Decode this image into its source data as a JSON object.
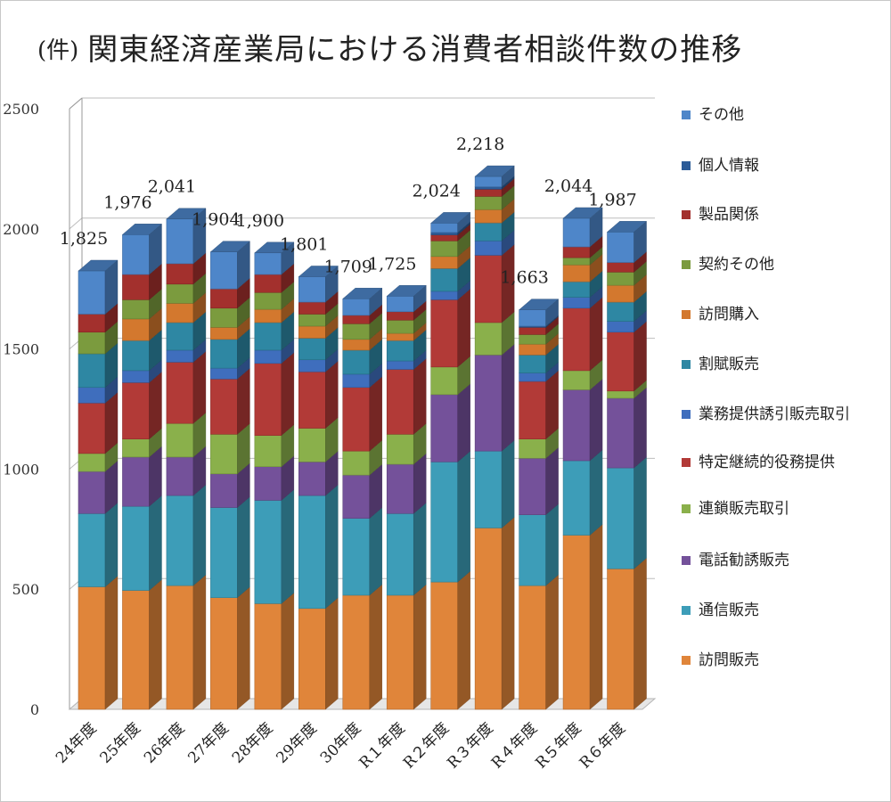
{
  "title": {
    "unit": "(件)",
    "text": "関東経済産業局における消費者相談件数の推移"
  },
  "chart_data": {
    "type": "bar",
    "stacked": true,
    "title": "関東経済産業局における消費者相談件数の推移",
    "ylabel": "(件)",
    "xlabel": "",
    "ylim": [
      0,
      2500
    ],
    "yticks": [
      "0",
      "500",
      "1000",
      "1500",
      "2000",
      "2500"
    ],
    "grid": true,
    "legend_position": "right",
    "categories": [
      "24年度",
      "25年度",
      "26年度",
      "27年度",
      "28年度",
      "29年度",
      "30年度",
      "R１年度",
      "R２年度",
      "R３年度",
      "R４年度",
      "R５年度",
      "R６年度"
    ],
    "totals": [
      1825,
      1976,
      2041,
      1904,
      1900,
      1801,
      1709,
      1725,
      2024,
      2218,
      1663,
      2044,
      1987
    ],
    "total_labels": [
      "1,825",
      "1,976",
      "2,041",
      "1,904",
      "1,900",
      "1,801",
      "1,709",
      "1,725",
      "2,024",
      "2,218",
      "1,663",
      "2,044",
      "1,987"
    ],
    "series": [
      {
        "name": "訪問販売",
        "color": "#E0853A",
        "values": [
          510,
          495,
          515,
          465,
          440,
          420,
          475,
          475,
          530,
          755,
          515,
          725,
          585
        ]
      },
      {
        "name": "通信販売",
        "color": "#3D9DB8",
        "values": [
          305,
          350,
          375,
          375,
          430,
          470,
          320,
          340,
          500,
          320,
          295,
          310,
          420
        ]
      },
      {
        "name": "電話勧誘販売",
        "color": "#74519A",
        "values": [
          175,
          205,
          160,
          140,
          140,
          140,
          180,
          205,
          280,
          400,
          235,
          295,
          290
        ]
      },
      {
        "name": "連鎖販売取引",
        "color": "#8AB04B",
        "values": [
          75,
          75,
          140,
          165,
          130,
          140,
          100,
          125,
          115,
          135,
          80,
          80,
          30
        ]
      },
      {
        "name": "特定継続的役務提供",
        "color": "#B23A37",
        "values": [
          210,
          235,
          255,
          230,
          300,
          235,
          265,
          270,
          280,
          280,
          240,
          260,
          245
        ]
      },
      {
        "name": "業務提供誘引販売取引",
        "color": "#3F6EBD",
        "values": [
          65,
          50,
          50,
          45,
          55,
          50,
          55,
          35,
          35,
          60,
          35,
          45,
          45
        ]
      },
      {
        "name": "割賦販売",
        "color": "#2E87A3",
        "values": [
          140,
          125,
          115,
          120,
          115,
          90,
          100,
          85,
          95,
          75,
          75,
          65,
          80
        ]
      },
      {
        "name": "訪問購入",
        "color": "#D3782E",
        "values": [
          0,
          90,
          80,
          50,
          55,
          50,
          45,
          30,
          50,
          55,
          45,
          70,
          70
        ]
      },
      {
        "name": "契約その他",
        "color": "#7B9B3E",
        "values": [
          90,
          80,
          80,
          80,
          70,
          50,
          65,
          55,
          65,
          55,
          40,
          30,
          55
        ]
      },
      {
        "name": "製品関係",
        "color": "#A3302D",
        "values": [
          75,
          105,
          85,
          80,
          75,
          50,
          35,
          35,
          25,
          30,
          30,
          45,
          40
        ]
      },
      {
        "name": "個人情報",
        "color": "#2C5C98",
        "values": [
          0,
          0,
          0,
          0,
          0,
          0,
          0,
          0,
          10,
          10,
          5,
          0,
          0
        ]
      },
      {
        "name": "その他",
        "color": "#4E86C9",
        "values": [
          180,
          166,
          186,
          154,
          90,
          106,
          69,
          65,
          39,
          43,
          68,
          119,
          127
        ]
      }
    ]
  }
}
